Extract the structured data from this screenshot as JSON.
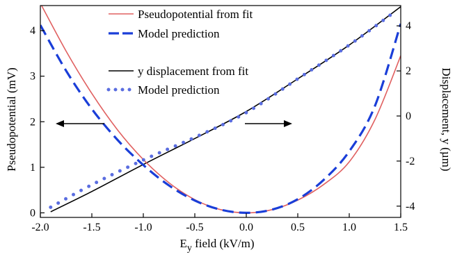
{
  "chart_data": {
    "type": "line",
    "xlabel_main": "E",
    "xlabel_sub": "y",
    "xlabel_rest": " field (kV/m)",
    "ylabel_left": "Pseudopotential (mV)",
    "ylabel_right": "Displacement, y (µm)",
    "xlim": [
      -2.0,
      1.5
    ],
    "ylim_left": [
      -0.1,
      4.55
    ],
    "ylim_right": [
      -4.5,
      4.9
    ],
    "x_ticks": [
      {
        "value": -2.0,
        "label": "-2.0"
      },
      {
        "value": -1.5,
        "label": "-1.5"
      },
      {
        "value": -1.0,
        "label": "-1.0"
      },
      {
        "value": -0.5,
        "label": "-0.5"
      },
      {
        "value": 0.0,
        "label": "0.0"
      },
      {
        "value": 0.5,
        "label": "0.5"
      },
      {
        "value": 1.0,
        "label": "1.0"
      },
      {
        "value": 1.5,
        "label": "1.5"
      }
    ],
    "y_ticks_left": [
      {
        "value": 0,
        "label": "0"
      },
      {
        "value": 1,
        "label": "1"
      },
      {
        "value": 2,
        "label": "2"
      },
      {
        "value": 3,
        "label": "3"
      },
      {
        "value": 4,
        "label": "4"
      }
    ],
    "y_ticks_right": [
      {
        "value": -4,
        "label": "-4"
      },
      {
        "value": -2,
        "label": "-2"
      },
      {
        "value": 0,
        "label": "0"
      },
      {
        "value": 2,
        "label": "2"
      },
      {
        "value": 4,
        "label": "4"
      }
    ],
    "grid": false,
    "legend_position": "top-center",
    "series": [
      {
        "name": "Pseudopotential from fit",
        "axis": "left",
        "style": "solid",
        "color": "#e06060",
        "x": [
          -2.0,
          -1.75,
          -1.5,
          -1.25,
          -1.0,
          -0.75,
          -0.5,
          -0.25,
          0.0,
          0.25,
          0.5,
          0.75,
          1.0,
          1.25,
          1.5
        ],
        "y": [
          4.6,
          3.55,
          2.62,
          1.82,
          1.17,
          0.66,
          0.29,
          0.07,
          0.0,
          0.07,
          0.28,
          0.62,
          1.12,
          2.05,
          3.45
        ]
      },
      {
        "name": "Model prediction",
        "axis": "left",
        "style": "dashed",
        "color": "#1a3ed8",
        "x": [
          -2.0,
          -1.75,
          -1.5,
          -1.25,
          -1.0,
          -0.75,
          -0.5,
          -0.25,
          0.0,
          0.25,
          0.5,
          0.75,
          1.0,
          1.25,
          1.5
        ],
        "y": [
          4.12,
          3.12,
          2.28,
          1.6,
          1.05,
          0.6,
          0.27,
          0.07,
          0.0,
          0.07,
          0.3,
          0.72,
          1.35,
          2.35,
          4.15
        ]
      },
      {
        "name": "y displacement from fit",
        "axis": "right",
        "style": "solid",
        "color": "#000000",
        "x": [
          -1.9,
          -1.5,
          -1.0,
          -0.5,
          0.0,
          0.5,
          1.0,
          1.5
        ],
        "y": [
          -4.25,
          -3.35,
          -2.15,
          -1.0,
          0.2,
          1.65,
          3.15,
          4.85
        ]
      },
      {
        "name": "Model prediction",
        "axis": "right",
        "style": "dotted",
        "color": "#5a6de0",
        "x": [
          -1.9,
          -1.5,
          -1.0,
          -0.5,
          0.0,
          0.5,
          1.0,
          1.45
        ],
        "y": [
          -4.05,
          -3.05,
          -1.95,
          -0.95,
          0.15,
          1.65,
          3.15,
          4.65
        ]
      }
    ]
  }
}
